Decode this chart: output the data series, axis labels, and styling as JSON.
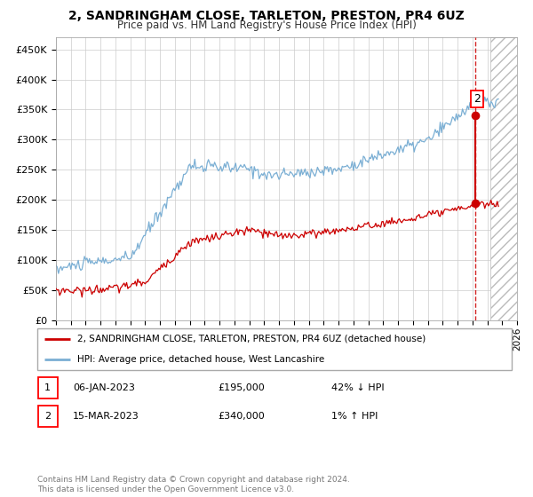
{
  "title": "2, SANDRINGHAM CLOSE, TARLETON, PRESTON, PR4 6UZ",
  "subtitle": "Price paid vs. HM Land Registry's House Price Index (HPI)",
  "ylim": [
    0,
    470000
  ],
  "yticks": [
    0,
    50000,
    100000,
    150000,
    200000,
    250000,
    300000,
    350000,
    400000,
    450000
  ],
  "ytick_labels": [
    "£0",
    "£50K",
    "£100K",
    "£150K",
    "£200K",
    "£250K",
    "£300K",
    "£350K",
    "£400K",
    "£450K"
  ],
  "hpi_color": "#7bafd4",
  "price_color": "#cc0000",
  "transaction1_price": 195000,
  "transaction1_label": "1",
  "transaction2_price": 340000,
  "transaction2_label": "2",
  "legend_property": "2, SANDRINGHAM CLOSE, TARLETON, PRESTON, PR4 6UZ (detached house)",
  "legend_hpi": "HPI: Average price, detached house, West Lancashire",
  "table_row1_num": "1",
  "table_row1_date": "06-JAN-2023",
  "table_row1_price": "£195,000",
  "table_row1_hpi": "42% ↓ HPI",
  "table_row2_num": "2",
  "table_row2_date": "15-MAR-2023",
  "table_row2_price": "£340,000",
  "table_row2_hpi": "1% ↑ HPI",
  "footnote": "Contains HM Land Registry data © Crown copyright and database right 2024.\nThis data is licensed under the Open Government Licence v3.0.",
  "bg_color": "#ffffff",
  "grid_color": "#cccccc",
  "xlim_start": 1995.0,
  "xlim_end": 2026.0,
  "transaction_x": 2023.2,
  "hatch_start": 2024.2
}
